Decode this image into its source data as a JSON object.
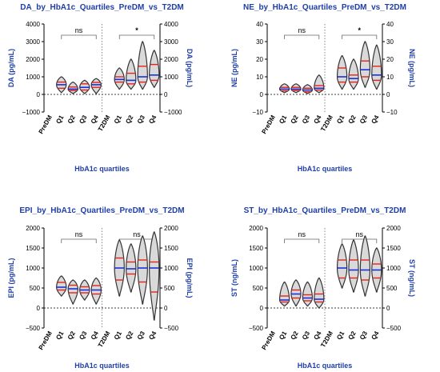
{
  "chart_data": [
    {
      "type": "violin",
      "title": "DA_by_HbA1c_Quartiles_PreDM_vs_T2DM",
      "xlabel": "HbA1c quartiles",
      "ylabel_left": "DA (pg/mL)",
      "ylabel_right": "DA (pg/mL)",
      "ylim": [
        -1000,
        4000
      ],
      "yticks": [
        "4000",
        "3000",
        "2000",
        "1000",
        "0",
        "−1000"
      ],
      "categories": [
        "PreDM",
        "Q1",
        "Q2",
        "Q3",
        "Q4",
        "T2DM",
        "Q1",
        "Q2",
        "Q3",
        "Q4"
      ],
      "brackets": [
        {
          "label": "ns"
        },
        {
          "label": "*"
        }
      ],
      "violins": [
        {
          "category_index": 1,
          "min": 100,
          "max": 1000,
          "q1": 350,
          "median": 550,
          "q3": 700
        },
        {
          "category_index": 2,
          "min": 50,
          "max": 700,
          "q1": 220,
          "median": 300,
          "q3": 420
        },
        {
          "category_index": 3,
          "min": 50,
          "max": 800,
          "q1": 250,
          "median": 400,
          "q3": 600
        },
        {
          "category_index": 4,
          "min": 50,
          "max": 900,
          "q1": 400,
          "median": 550,
          "q3": 680
        },
        {
          "category_index": 6,
          "min": 300,
          "max": 1500,
          "q1": 700,
          "median": 850,
          "q3": 1000
        },
        {
          "category_index": 7,
          "min": 300,
          "max": 2000,
          "q1": 600,
          "median": 800,
          "q3": 1200
        },
        {
          "category_index": 8,
          "min": 300,
          "max": 3000,
          "q1": 700,
          "median": 1000,
          "q3": 1600
        },
        {
          "category_index": 9,
          "min": 400,
          "max": 2500,
          "q1": 800,
          "median": 1100,
          "q3": 1700
        }
      ]
    },
    {
      "type": "violin",
      "title": "NE_by_HbA1c_Quartiles_PreDM_vs_T2DM",
      "xlabel": "HbA1c quartiles",
      "ylabel_left": "NE (pg/mL)",
      "ylabel_right": "NE (pg/mL)",
      "ylim": [
        -10,
        40
      ],
      "yticks": [
        "40",
        "30",
        "20",
        "10",
        "0",
        "−10"
      ],
      "categories": [
        "PreDM",
        "Q1",
        "Q2",
        "Q3",
        "Q4",
        "T2DM",
        "Q1",
        "Q2",
        "Q3",
        "Q4"
      ],
      "brackets": [
        {
          "label": "ns"
        },
        {
          "label": "*"
        }
      ],
      "violins": [
        {
          "category_index": 1,
          "min": 1,
          "max": 6,
          "q1": 2,
          "median": 3,
          "q3": 4
        },
        {
          "category_index": 2,
          "min": 1,
          "max": 6,
          "q1": 2.2,
          "median": 3,
          "q3": 4
        },
        {
          "category_index": 3,
          "min": 0.5,
          "max": 5.5,
          "q1": 1.5,
          "median": 2.5,
          "q3": 3.5
        },
        {
          "category_index": 4,
          "min": 1,
          "max": 11,
          "q1": 2.5,
          "median": 3.5,
          "q3": 5
        },
        {
          "category_index": 6,
          "min": 3,
          "max": 22,
          "q1": 7,
          "median": 10,
          "q3": 15
        },
        {
          "category_index": 7,
          "min": 3,
          "max": 20,
          "q1": 7,
          "median": 9,
          "q3": 11
        },
        {
          "category_index": 8,
          "min": 4,
          "max": 30,
          "q1": 10,
          "median": 14,
          "q3": 19
        },
        {
          "category_index": 9,
          "min": 3,
          "max": 28,
          "q1": 8,
          "median": 11,
          "q3": 16
        }
      ]
    },
    {
      "type": "violin",
      "title": "EPI_by_HbA1c_Quartiles_PreDM_vs_T2DM",
      "xlabel": "HbA1c quartiles",
      "ylabel_left": "EPI (pg/mL)",
      "ylabel_right": "EPI (pg/mL)",
      "ylim": [
        -500,
        2000
      ],
      "yticks": [
        "2000",
        "1500",
        "1000",
        "500",
        "0",
        "−500"
      ],
      "categories": [
        "PreDM",
        "Q1",
        "Q2",
        "Q3",
        "Q4",
        "T2DM",
        "Q1",
        "Q2",
        "Q3",
        "Q4"
      ],
      "brackets": [
        {
          "label": "ns"
        },
        {
          "label": "ns"
        }
      ],
      "violins": [
        {
          "category_index": 1,
          "min": 300,
          "max": 800,
          "q1": 450,
          "median": 520,
          "q3": 640
        },
        {
          "category_index": 2,
          "min": 100,
          "max": 700,
          "q1": 380,
          "median": 480,
          "q3": 570
        },
        {
          "category_index": 3,
          "min": 200,
          "max": 700,
          "q1": 380,
          "median": 450,
          "q3": 530
        },
        {
          "category_index": 4,
          "min": 100,
          "max": 750,
          "q1": 350,
          "median": 450,
          "q3": 560
        },
        {
          "category_index": 6,
          "min": 300,
          "max": 1700,
          "q1": 700,
          "median": 1000,
          "q3": 1250
        },
        {
          "category_index": 7,
          "min": 400,
          "max": 1600,
          "q1": 850,
          "median": 980,
          "q3": 1150
        },
        {
          "category_index": 8,
          "min": 100,
          "max": 1800,
          "q1": 650,
          "median": 1000,
          "q3": 1200
        },
        {
          "category_index": 9,
          "min": -300,
          "max": 1900,
          "q1": 400,
          "median": 1000,
          "q3": 1150
        }
      ]
    },
    {
      "type": "violin",
      "title": "ST_by_HbA1c_Quartiles_PreDM_vs_T2DM",
      "xlabel": "HbA1c quartiles",
      "ylabel_left": "ST (ng/mL)",
      "ylabel_right": "ST (ng/mL)",
      "ylim": [
        -500,
        2000
      ],
      "yticks": [
        "2000",
        "1500",
        "1000",
        "500",
        "0",
        "−500"
      ],
      "categories": [
        "PreDM",
        "Q1",
        "Q2",
        "Q3",
        "Q4",
        "T2DM",
        "Q1",
        "Q2",
        "Q3",
        "Q4"
      ],
      "brackets": [
        {
          "label": "ns"
        },
        {
          "label": "ns"
        }
      ],
      "violins": [
        {
          "category_index": 1,
          "min": 50,
          "max": 650,
          "q1": 150,
          "median": 200,
          "q3": 300
        },
        {
          "category_index": 2,
          "min": 50,
          "max": 700,
          "q1": 250,
          "median": 350,
          "q3": 450
        },
        {
          "category_index": 3,
          "min": 50,
          "max": 650,
          "q1": 180,
          "median": 250,
          "q3": 330
        },
        {
          "category_index": 4,
          "min": 0,
          "max": 750,
          "q1": 150,
          "median": 220,
          "q3": 350
        },
        {
          "category_index": 6,
          "min": 500,
          "max": 1600,
          "q1": 750,
          "median": 1000,
          "q3": 1200
        },
        {
          "category_index": 7,
          "min": 400,
          "max": 1700,
          "q1": 750,
          "median": 950,
          "q3": 1200
        },
        {
          "category_index": 8,
          "min": 300,
          "max": 1800,
          "q1": 700,
          "median": 950,
          "q3": 1200
        },
        {
          "category_index": 9,
          "min": 400,
          "max": 1500,
          "q1": 750,
          "median": 950,
          "q3": 1100
        }
      ]
    }
  ]
}
